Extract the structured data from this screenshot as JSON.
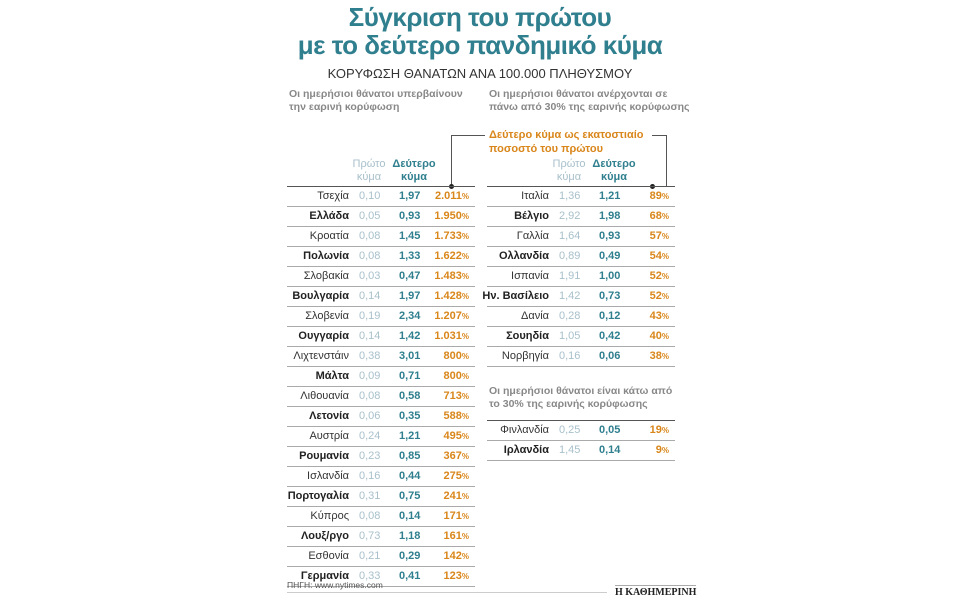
{
  "title_line1": "Σύγκριση του πρώτου",
  "title_line2": "με το δεύτερο πανδημικό κύμα",
  "subtitle": "ΚΟΡΥΦΩΣΗ ΘΑΝΑΤΩΝ ΑΝΑ 100.000 ΠΛΗΘΥΣΜΟΥ",
  "note_line1": "Δεύτερο κύμα ως εκατοστιαίο",
  "note_line2": "ποσοστό του πρώτου",
  "col_first_1": "Πρώτο",
  "col_first_2": "κύμα",
  "col_second_1": "Δεύτερο",
  "col_second_2": "κύμα",
  "source": "ΠΗΓΗ: www.nytimes.com",
  "logo": "Η ΚΑΘΗΜΕΡΙΝΗ",
  "colors": {
    "title": "#2f7f8e",
    "first": "#a8c0cb",
    "second": "#2f7f8e",
    "percent": "#d9861a"
  },
  "chart_data": {
    "type": "table",
    "title": "Σύγκριση του πρώτου με το δεύτερο πανδημικό κύμα",
    "columns": [
      "Χώρα",
      "Πρώτο κύμα",
      "Δεύτερο κύμα",
      "%"
    ],
    "groups": [
      {
        "label_1": "Οι ημερήσιοι θάνατοι υπερβαίνουν",
        "label_2": "την εαρινή κορύφωση",
        "rows": [
          [
            "Τσεχία",
            "0,10",
            "1,97",
            "2.011"
          ],
          [
            "Ελλάδα",
            "0,05",
            "0,93",
            "1.950"
          ],
          [
            "Κροατία",
            "0,08",
            "1,45",
            "1.733"
          ],
          [
            "Πολωνία",
            "0,08",
            "1,33",
            "1.622"
          ],
          [
            "Σλοβακία",
            "0,03",
            "0,47",
            "1.483"
          ],
          [
            "Βουλγαρία",
            "0,14",
            "1,97",
            "1.428"
          ],
          [
            "Σλοβενία",
            "0,19",
            "2,34",
            "1.207"
          ],
          [
            "Ουγγαρία",
            "0,14",
            "1,42",
            "1.031"
          ],
          [
            "Λιχτενστάιν",
            "0,38",
            "3,01",
            "800"
          ],
          [
            "Μάλτα",
            "0,09",
            "0,71",
            "800"
          ],
          [
            "Λιθουανία",
            "0,08",
            "0,58",
            "713"
          ],
          [
            "Λετονία",
            "0,06",
            "0,35",
            "588"
          ],
          [
            "Αυστρία",
            "0,24",
            "1,21",
            "495"
          ],
          [
            "Ρουμανία",
            "0,23",
            "0,85",
            "367"
          ],
          [
            "Ισλανδία",
            "0,16",
            "0,44",
            "275"
          ],
          [
            "Πορτογαλία",
            "0,31",
            "0,75",
            "241"
          ],
          [
            "Κύπρος",
            "0,08",
            "0,14",
            "171"
          ],
          [
            "Λουξ/ργο",
            "0,73",
            "1,18",
            "161"
          ],
          [
            "Εσθονία",
            "0,21",
            "0,29",
            "142"
          ],
          [
            "Γερμανία",
            "0,33",
            "0,41",
            "123"
          ]
        ]
      },
      {
        "label_1": "Οι ημερήσιοι θάνατοι ανέρχονται σε",
        "label_2": "πάνω από 30% της εαρινής κορύφωσης",
        "rows": [
          [
            "Ιταλία",
            "1,36",
            "1,21",
            "89"
          ],
          [
            "Βέλγιο",
            "2,92",
            "1,98",
            "68"
          ],
          [
            "Γαλλία",
            "1,64",
            "0,93",
            "57"
          ],
          [
            "Ολλανδία",
            "0,89",
            "0,49",
            "54"
          ],
          [
            "Ισπανία",
            "1,91",
            "1,00",
            "52"
          ],
          [
            "Ην. Βασίλειο",
            "1,42",
            "0,73",
            "52"
          ],
          [
            "Δανία",
            "0,28",
            "0,12",
            "43"
          ],
          [
            "Σουηδία",
            "1,05",
            "0,42",
            "40"
          ],
          [
            "Νορβηγία",
            "0,16",
            "0,06",
            "38"
          ]
        ]
      },
      {
        "label_1": "Οι ημερήσιοι θάνατοι είναι κάτω από",
        "label_2": "το 30% της εαρινής κορύφωσης",
        "rows": [
          [
            "Φινλανδία",
            "0,25",
            "0,05",
            "19"
          ],
          [
            "Ιρλανδία",
            "1,45",
            "0,14",
            "9"
          ]
        ]
      }
    ]
  }
}
